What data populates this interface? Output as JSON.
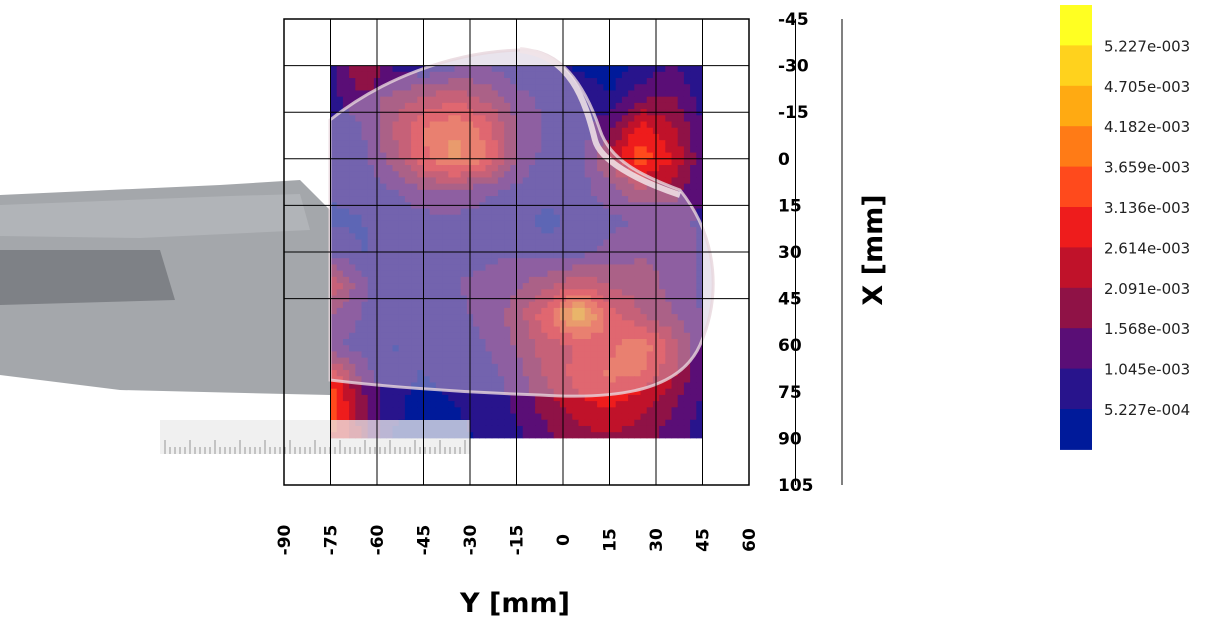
{
  "chart_data": {
    "type": "heatmap",
    "xlabel": "Y [mm]",
    "ylabel": "X [mm]",
    "x_ticks": [
      -90,
      -75,
      -60,
      -45,
      -30,
      -15,
      0,
      15,
      30,
      45,
      60
    ],
    "y_ticks": [
      -45,
      -30,
      -15,
      0,
      15,
      30,
      45,
      60,
      75,
      90,
      105
    ],
    "xlim": [
      -90,
      60
    ],
    "ylim": [
      -45,
      105
    ],
    "data_extent": {
      "x": [
        -75,
        45
      ],
      "y": [
        -30,
        90
      ]
    },
    "grid": true,
    "grid_y": [
      -75,
      -60,
      -45,
      -30,
      -15,
      0,
      15,
      30,
      45,
      60,
      75,
      90
    ],
    "grid_x": [
      -75,
      -60,
      -45,
      -30,
      -15,
      0,
      15,
      30,
      45
    ],
    "field": [
      [
        0.0008,
        0.0022,
        0.001,
        0.0005,
        0.0009,
        0.0011,
        0.0006,
        0.0008,
        0.0004,
        0.0003,
        0.0006,
        0.0011,
        0.0005
      ],
      [
        0.0009,
        0.0014,
        0.0016,
        0.0021,
        0.0024,
        0.0019,
        0.0012,
        0.0009,
        0.001,
        0.0005,
        0.0014,
        0.0016,
        0.0008
      ],
      [
        0.0006,
        0.001,
        0.0021,
        0.0031,
        0.0036,
        0.0029,
        0.0016,
        0.0009,
        0.0008,
        0.0014,
        0.0028,
        0.0022,
        0.001
      ],
      [
        0.0005,
        0.0008,
        0.0018,
        0.003,
        0.0038,
        0.0032,
        0.0015,
        0.0008,
        0.0007,
        0.0022,
        0.0035,
        0.0026,
        0.0012
      ],
      [
        0.0006,
        0.0007,
        0.001,
        0.0015,
        0.0016,
        0.0012,
        0.0009,
        0.0006,
        0.0008,
        0.0014,
        0.002,
        0.0018,
        0.0011
      ],
      [
        0.0004,
        0.0005,
        0.0007,
        0.0008,
        0.0009,
        0.0007,
        0.0006,
        0.0004,
        0.0006,
        0.0009,
        0.0011,
        0.0013,
        0.0009
      ],
      [
        0.0009,
        0.0005,
        0.0006,
        0.0007,
        0.0008,
        0.0009,
        0.001,
        0.0007,
        0.0008,
        0.0012,
        0.0015,
        0.0014,
        0.001
      ],
      [
        0.0026,
        0.0012,
        0.0007,
        0.0008,
        0.001,
        0.0012,
        0.0014,
        0.0019,
        0.0024,
        0.002,
        0.0018,
        0.0014,
        0.0009
      ],
      [
        0.0016,
        0.001,
        0.0006,
        0.0007,
        0.0009,
        0.0012,
        0.0018,
        0.003,
        0.0047,
        0.0028,
        0.0021,
        0.0016,
        0.001
      ],
      [
        0.0012,
        0.0008,
        0.0005,
        0.0006,
        0.0008,
        0.001,
        0.0016,
        0.0024,
        0.0026,
        0.003,
        0.0035,
        0.0024,
        0.0012
      ],
      [
        0.0031,
        0.0014,
        0.0006,
        0.0005,
        0.0006,
        0.0008,
        0.0013,
        0.0022,
        0.0028,
        0.0032,
        0.0031,
        0.0022,
        0.0011
      ],
      [
        0.0035,
        0.0018,
        0.0006,
        0.0004,
        0.0005,
        0.0007,
        0.0011,
        0.0018,
        0.0024,
        0.0026,
        0.0022,
        0.0016,
        0.0009
      ],
      [
        0.0032,
        0.002,
        0.0005,
        0.0004,
        0.0004,
        0.0006,
        0.0009,
        0.0014,
        0.0018,
        0.002,
        0.0018,
        0.0013,
        0.0008
      ]
    ],
    "colorbar": {
      "labels": [
        "5.227e-003",
        "4.705e-003",
        "4.182e-003",
        "3.659e-003",
        "3.136e-003",
        "2.614e-003",
        "2.091e-003",
        "1.568e-003",
        "1.045e-003",
        "5.227e-004"
      ],
      "colors": [
        "#ffff22",
        "#ffd21d",
        "#ffaa12",
        "#ff7b16",
        "#ff4a1c",
        "#ee1c1c",
        "#c0122a",
        "#8f1246",
        "#5a0e76",
        "#28148c",
        "#001a9a"
      ]
    }
  }
}
